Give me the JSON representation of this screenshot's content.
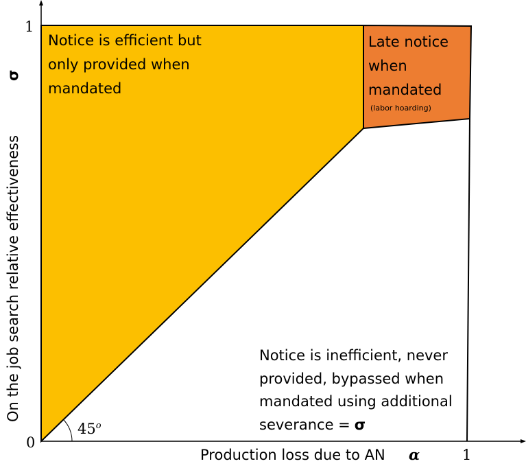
{
  "axes": {
    "y_label": "On the job search relative effectiveness",
    "y_symbol": "σ",
    "x_label": "Production loss due to AN",
    "x_symbol": "α",
    "y_top_tick": "1",
    "origin_tick": "0",
    "x_end_tick": "1"
  },
  "angle_label": {
    "text": "45",
    "superscript": "o"
  },
  "regions": [
    {
      "lines": [
        "Notice is efficient but",
        "only provided when",
        "mandated"
      ]
    },
    {
      "lines": [
        "Late notice",
        "when",
        "mandated"
      ],
      "note": "(labor hoarding)"
    },
    {
      "lines": [
        "Notice is inefficient, never",
        "provided, bypassed when",
        "mandated using additional",
        "severance ="
      ],
      "symbol": "σ"
    }
  ]
}
